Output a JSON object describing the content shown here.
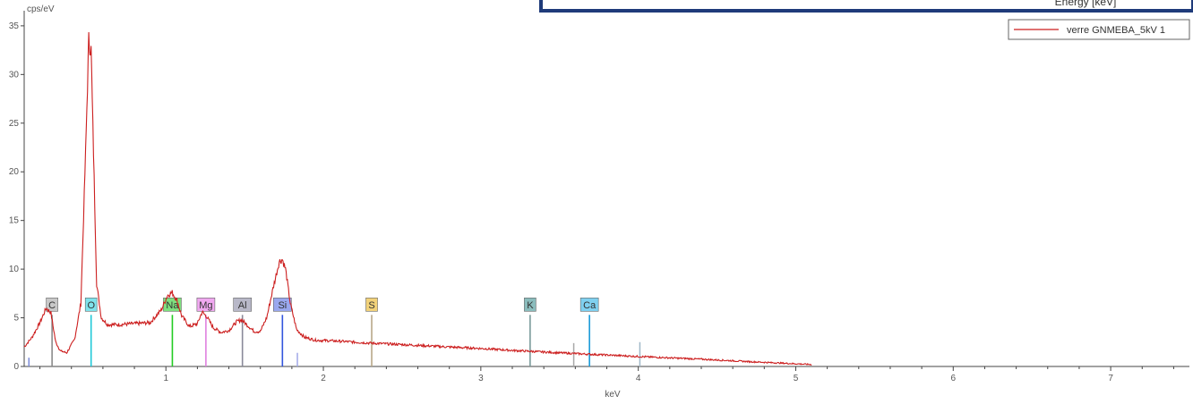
{
  "overlay": {
    "text": "Energy [keV]"
  },
  "legend": {
    "series_name": "verre GNMEBA_5kV 1"
  },
  "chart_data": {
    "type": "line",
    "title": "",
    "xlabel": "keV",
    "ylabel": "cps/eV",
    "xlim": [
      0.1,
      7.5
    ],
    "ylim": [
      0,
      36
    ],
    "x_ticks": [
      1,
      2,
      3,
      4,
      5,
      6,
      7
    ],
    "y_ticks": [
      0,
      5,
      10,
      15,
      20,
      25,
      30,
      35
    ],
    "x_tick_labels": [
      "1",
      "2",
      "3",
      "4",
      "5",
      "6",
      "7"
    ],
    "y_tick_labels": [
      "0",
      "5",
      "10",
      "15",
      "20",
      "25",
      "30",
      "35"
    ],
    "legend_position": "top-right",
    "series": [
      {
        "name": "verre GNMEBA_5kV 1",
        "color": "#cc1f1f",
        "x": [
          0.1,
          0.15,
          0.2,
          0.24,
          0.27,
          0.3,
          0.33,
          0.37,
          0.42,
          0.46,
          0.49,
          0.51,
          0.525,
          0.54,
          0.56,
          0.59,
          0.63,
          0.7,
          0.8,
          0.9,
          0.97,
          1.01,
          1.04,
          1.07,
          1.1,
          1.15,
          1.2,
          1.23,
          1.26,
          1.3,
          1.35,
          1.4,
          1.45,
          1.48,
          1.52,
          1.56,
          1.6,
          1.64,
          1.68,
          1.72,
          1.74,
          1.76,
          1.79,
          1.83,
          1.88,
          1.95,
          2.1,
          2.3,
          2.5,
          2.8,
          3.0,
          3.2,
          3.5,
          3.7,
          3.9,
          4.1,
          4.4,
          4.7,
          4.9,
          5.1
        ],
        "y": [
          2.0,
          3.0,
          4.5,
          6.0,
          5.5,
          2.5,
          1.6,
          1.4,
          2.8,
          6.5,
          22.0,
          33.5,
          32.5,
          22.0,
          8.5,
          5.0,
          4.3,
          4.3,
          4.4,
          4.5,
          5.8,
          7.3,
          7.6,
          6.8,
          5.2,
          4.1,
          4.4,
          5.6,
          5.1,
          4.0,
          3.5,
          3.7,
          4.6,
          4.8,
          4.2,
          3.6,
          3.6,
          5.0,
          8.0,
          10.8,
          11.0,
          10.0,
          6.5,
          3.8,
          3.0,
          2.7,
          2.6,
          2.4,
          2.25,
          2.0,
          1.85,
          1.65,
          1.4,
          1.25,
          1.1,
          0.95,
          0.75,
          0.5,
          0.35,
          0.2
        ]
      }
    ],
    "element_markers": [
      {
        "label": "C",
        "energy": 0.277,
        "height": 5.3,
        "color": "#8a8a8a",
        "tag_bg": "#c8c8c8"
      },
      {
        "label": "O",
        "energy": 0.525,
        "height": 5.3,
        "color": "#22c9d8",
        "tag_bg": "#7fe3ec"
      },
      {
        "label": "Na",
        "energy": 1.041,
        "height": 5.3,
        "color": "#22cc22",
        "tag_bg": "#7fe07f"
      },
      {
        "label": "Mg",
        "energy": 1.254,
        "height": 5.3,
        "color": "#e080e0",
        "tag_bg": "#f0a8f0"
      },
      {
        "label": "Al",
        "energy": 1.486,
        "height": 5.3,
        "color": "#8a8a9a",
        "tag_bg": "#b8b8c8"
      },
      {
        "label": "Si",
        "energy": 1.74,
        "height": 5.3,
        "color": "#3355dd",
        "tag_bg": "#9aa8ee"
      },
      {
        "label": "S",
        "energy": 2.307,
        "height": 5.3,
        "color": "#b8a888",
        "tag_bg": "#f2d27a"
      },
      {
        "label": "K",
        "energy": 3.313,
        "height": 5.3,
        "color": "#7a9a9a",
        "tag_bg": "#8abcbc"
      },
      {
        "label": "Ca",
        "energy": 3.69,
        "height": 5.3,
        "color": "#1a9ad8",
        "tag_bg": "#7fd0f0"
      }
    ],
    "minor_lines": [
      {
        "energy": 0.13,
        "height": 0.9,
        "color": "#7a8ad8"
      },
      {
        "energy": 1.835,
        "height": 1.4,
        "color": "#a0a8e8"
      },
      {
        "energy": 3.59,
        "height": 2.4,
        "color": "#a8a8a8"
      },
      {
        "energy": 4.01,
        "height": 2.5,
        "color": "#a0b8c8"
      }
    ]
  }
}
